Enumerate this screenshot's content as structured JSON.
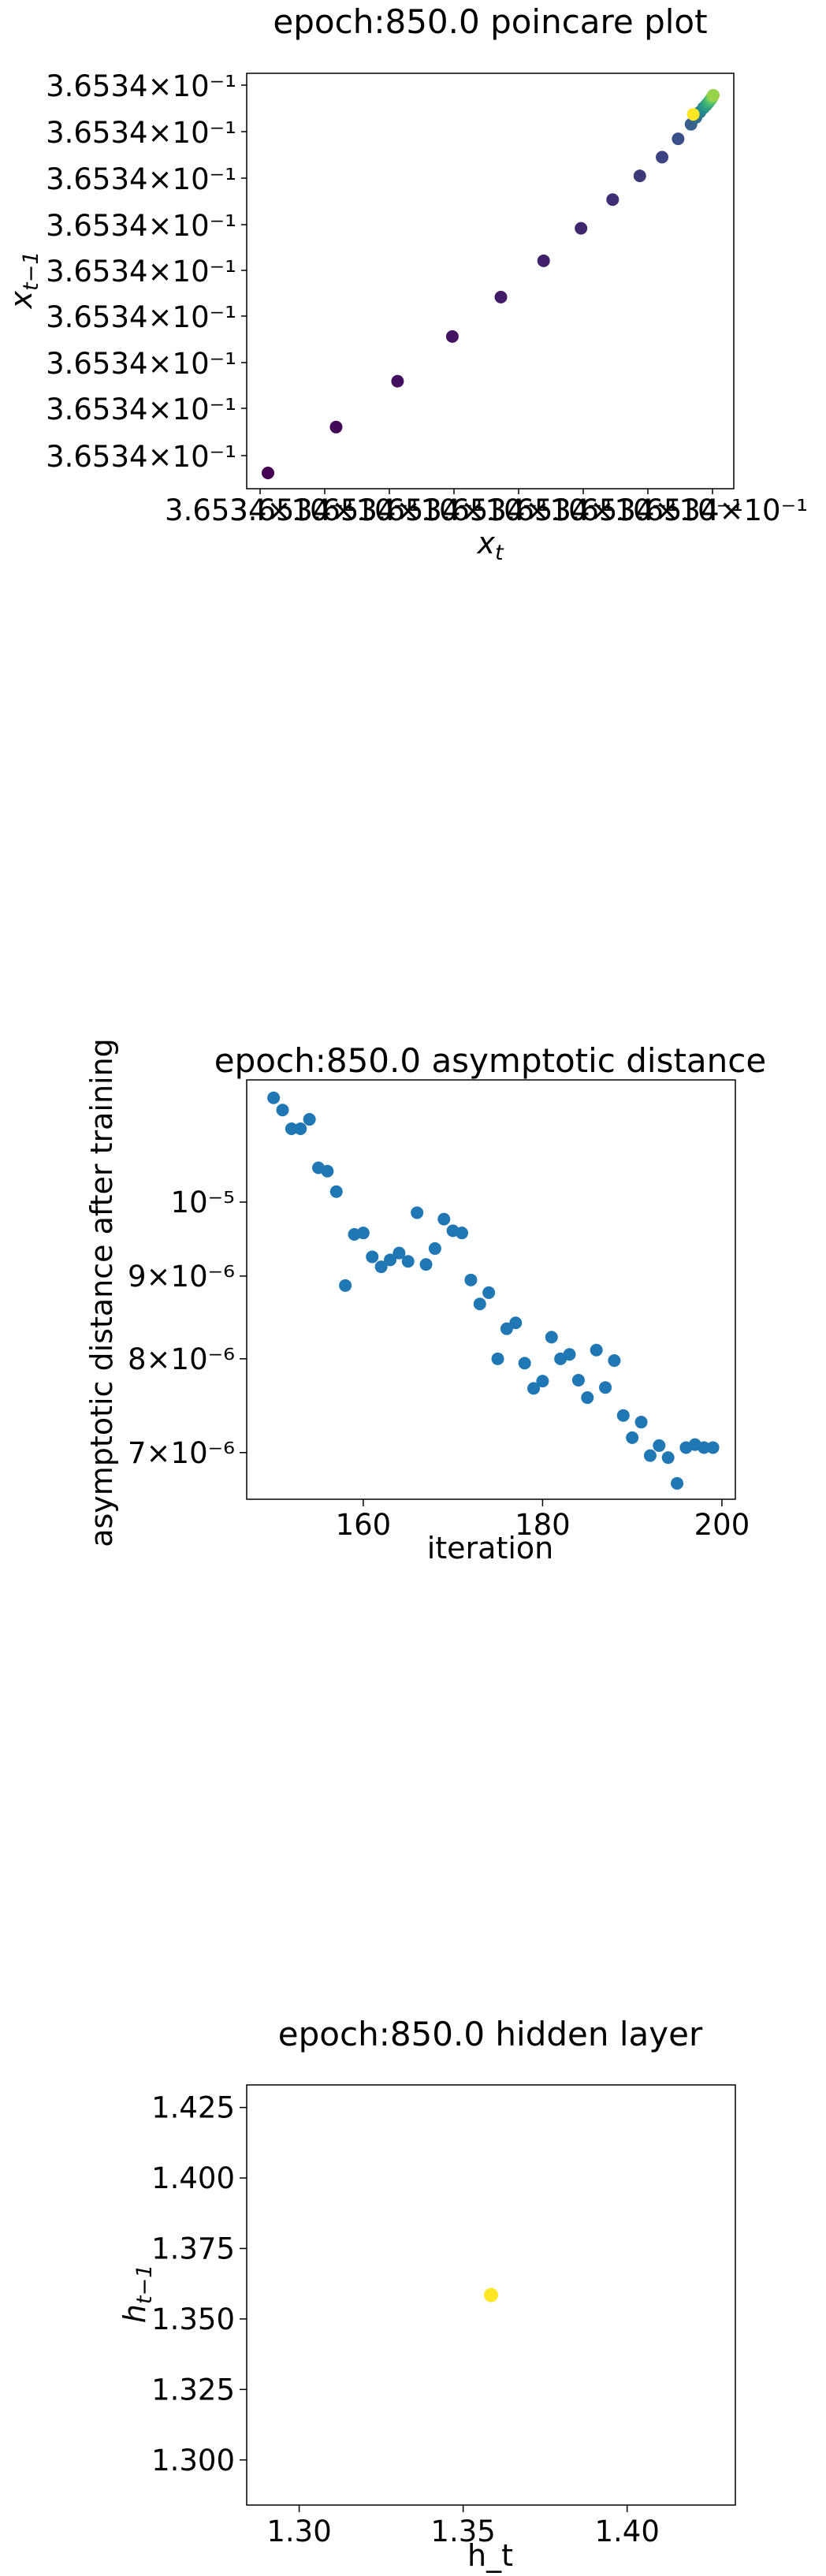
{
  "chart_data": [
    {
      "type": "scatter",
      "title": "epoch:850.0 poincare plot",
      "xlabel": "x_t",
      "ylabel": "x_{t−1}",
      "xtick_labels": [
        "3.6534×10⁻¹",
        "3.6534×10⁻¹",
        "3.6534×10⁻¹",
        "3.6534×10⁻¹",
        "3.6534×10⁻¹",
        "3.6534×10⁻¹",
        "3.6534×10⁻¹",
        "3.6534×10⁻¹"
      ],
      "ytick_labels": [
        "3.6534×10⁻¹",
        "3.6534×10⁻¹",
        "3.6534×10⁻¹",
        "3.6534×10⁻¹",
        "3.6534×10⁻¹",
        "3.6534×10⁻¹",
        "3.6534×10⁻¹",
        "3.6534×10⁻¹",
        "3.6534×10⁻¹"
      ],
      "color_scale": "viridis",
      "points": [
        {
          "t": 0.0,
          "x": 0.0,
          "y": 0.0
        },
        {
          "t": 0.02,
          "x": 0.153,
          "y": 0.12
        },
        {
          "t": 0.04,
          "x": 0.291,
          "y": 0.24
        },
        {
          "t": 0.06,
          "x": 0.414,
          "y": 0.357
        },
        {
          "t": 0.08,
          "x": 0.523,
          "y": 0.46
        },
        {
          "t": 0.1,
          "x": 0.619,
          "y": 0.555
        },
        {
          "t": 0.12,
          "x": 0.703,
          "y": 0.64
        },
        {
          "t": 0.14,
          "x": 0.774,
          "y": 0.715
        },
        {
          "t": 0.17,
          "x": 0.835,
          "y": 0.777
        },
        {
          "t": 0.2,
          "x": 0.885,
          "y": 0.826
        },
        {
          "t": 0.24,
          "x": 0.921,
          "y": 0.874
        },
        {
          "t": 0.3,
          "x": 0.95,
          "y": 0.912
        },
        {
          "t": 0.36,
          "x": 0.961,
          "y": 0.93
        },
        {
          "t": 0.42,
          "x": 0.97,
          "y": 0.944
        },
        {
          "t": 0.48,
          "x": 0.978,
          "y": 0.955
        },
        {
          "t": 0.54,
          "x": 0.984,
          "y": 0.962
        },
        {
          "t": 0.6,
          "x": 0.989,
          "y": 0.969
        },
        {
          "t": 0.66,
          "x": 0.993,
          "y": 0.975
        },
        {
          "t": 0.72,
          "x": 0.996,
          "y": 0.98
        },
        {
          "t": 0.78,
          "x": 0.998,
          "y": 0.984
        },
        {
          "t": 0.84,
          "x": 1.0,
          "y": 0.988
        },
        {
          "t": 1.0,
          "x": 0.955,
          "y": 0.938
        }
      ]
    },
    {
      "type": "scatter",
      "title": "epoch:850.0 asymptotic distance",
      "xlabel": "iteration",
      "ylabel": "asymptotic distance after training",
      "yscale": "log",
      "xlim": [
        147.0,
        201.5
      ],
      "ylim": [
        6.55e-06,
        1.19e-05
      ],
      "xticks": [
        160,
        180,
        200
      ],
      "xtick_labels": [
        "160",
        "180",
        "200"
      ],
      "yticks": [
        7e-06,
        8e-06,
        9e-06,
        1e-05
      ],
      "ytick_labels": [
        "7×10⁻⁶",
        "8×10⁻⁶",
        "9×10⁻⁶",
        "10⁻⁵"
      ],
      "series_color": "#1f77b4",
      "x": [
        150,
        151,
        152,
        153,
        154,
        155,
        156,
        157,
        158,
        159,
        160,
        161,
        162,
        163,
        164,
        165,
        166,
        167,
        168,
        169,
        170,
        171,
        172,
        173,
        174,
        175,
        176,
        177,
        178,
        179,
        180,
        181,
        182,
        183,
        184,
        185,
        186,
        187,
        188,
        189,
        190,
        191,
        192,
        193,
        194,
        195,
        196,
        197,
        198,
        199
      ],
      "y": [
        1.16e-05,
        1.14e-05,
        1.11e-05,
        1.11e-05,
        1.125e-05,
        1.05e-05,
        1.045e-05,
        1.015e-05,
        8.88e-06,
        9.55e-06,
        9.57e-06,
        9.25e-06,
        9.12e-06,
        9.21e-06,
        9.3e-06,
        9.19e-06,
        9.85e-06,
        9.15e-06,
        9.36e-06,
        9.76e-06,
        9.6e-06,
        9.57e-06,
        8.95e-06,
        8.65e-06,
        8.79e-06,
        8e-06,
        8.35e-06,
        8.42e-06,
        7.95e-06,
        7.67e-06,
        7.75e-06,
        8.25e-06,
        8e-06,
        8.05e-06,
        7.76e-06,
        7.57e-06,
        8.1e-06,
        7.68e-06,
        7.98e-06,
        7.38e-06,
        7.15e-06,
        7.31e-06,
        6.97e-06,
        7.07e-06,
        6.95e-06,
        6.7e-06,
        7.05e-06,
        7.08e-06,
        7.05e-06,
        7.05e-06
      ]
    },
    {
      "type": "scatter",
      "title": "epoch:850.0 hidden layer",
      "xlabel": "h_t",
      "ylabel": "h_{t−1}",
      "xlim": [
        1.284,
        1.433
      ],
      "ylim": [
        1.284,
        1.433
      ],
      "xticks": [
        1.3,
        1.35,
        1.4
      ],
      "xtick_labels": [
        "1.30",
        "1.35",
        "1.40"
      ],
      "yticks": [
        1.3,
        1.325,
        1.35,
        1.375,
        1.4,
        1.425
      ],
      "ytick_labels": [
        "1.300",
        "1.325",
        "1.350",
        "1.375",
        "1.400",
        "1.425"
      ],
      "points": [
        {
          "x": 1.3585,
          "y": 1.3585,
          "color": "#fde725"
        }
      ]
    }
  ]
}
